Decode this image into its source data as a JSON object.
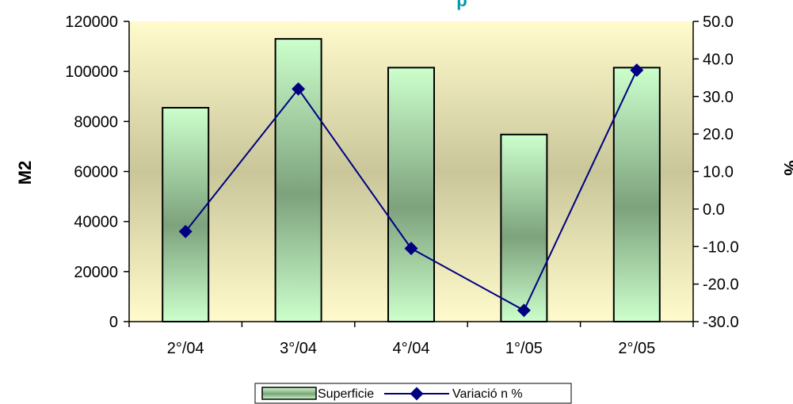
{
  "chart_data": {
    "type": "bar",
    "title": "p",
    "categories": [
      "2°/04",
      "3°/04",
      "4°/04",
      "1°/05",
      "2°/05"
    ],
    "series": [
      {
        "name": "Superficie",
        "type": "bar",
        "axis": "left",
        "values": [
          85500,
          113000,
          101500,
          74800,
          101500
        ]
      },
      {
        "name": "Variació n %",
        "type": "line",
        "axis": "right",
        "values": [
          -6.0,
          32.0,
          -10.5,
          -27.0,
          37.0
        ]
      }
    ],
    "ylabel": "M2",
    "y2label": "%",
    "ylim": [
      0,
      120000
    ],
    "y2lim": [
      -30,
      50
    ],
    "yticks": [
      "0",
      "20000",
      "40000",
      "60000",
      "80000",
      "100000",
      "120000"
    ],
    "y2ticks": [
      "-30.0",
      "-20.0",
      "-10.0",
      "0.0",
      "10.0",
      "20.0",
      "30.0",
      "40.0",
      "50.0"
    ],
    "grid": false,
    "legend_position": "bottom",
    "colors": {
      "plot_bg_light": "#fffbcc",
      "plot_bg_mid": "#c9c69a",
      "bar_light": "#ccffcc",
      "bar_dark": "#7da27d",
      "line": "#000080",
      "title": "#0099aa"
    }
  }
}
